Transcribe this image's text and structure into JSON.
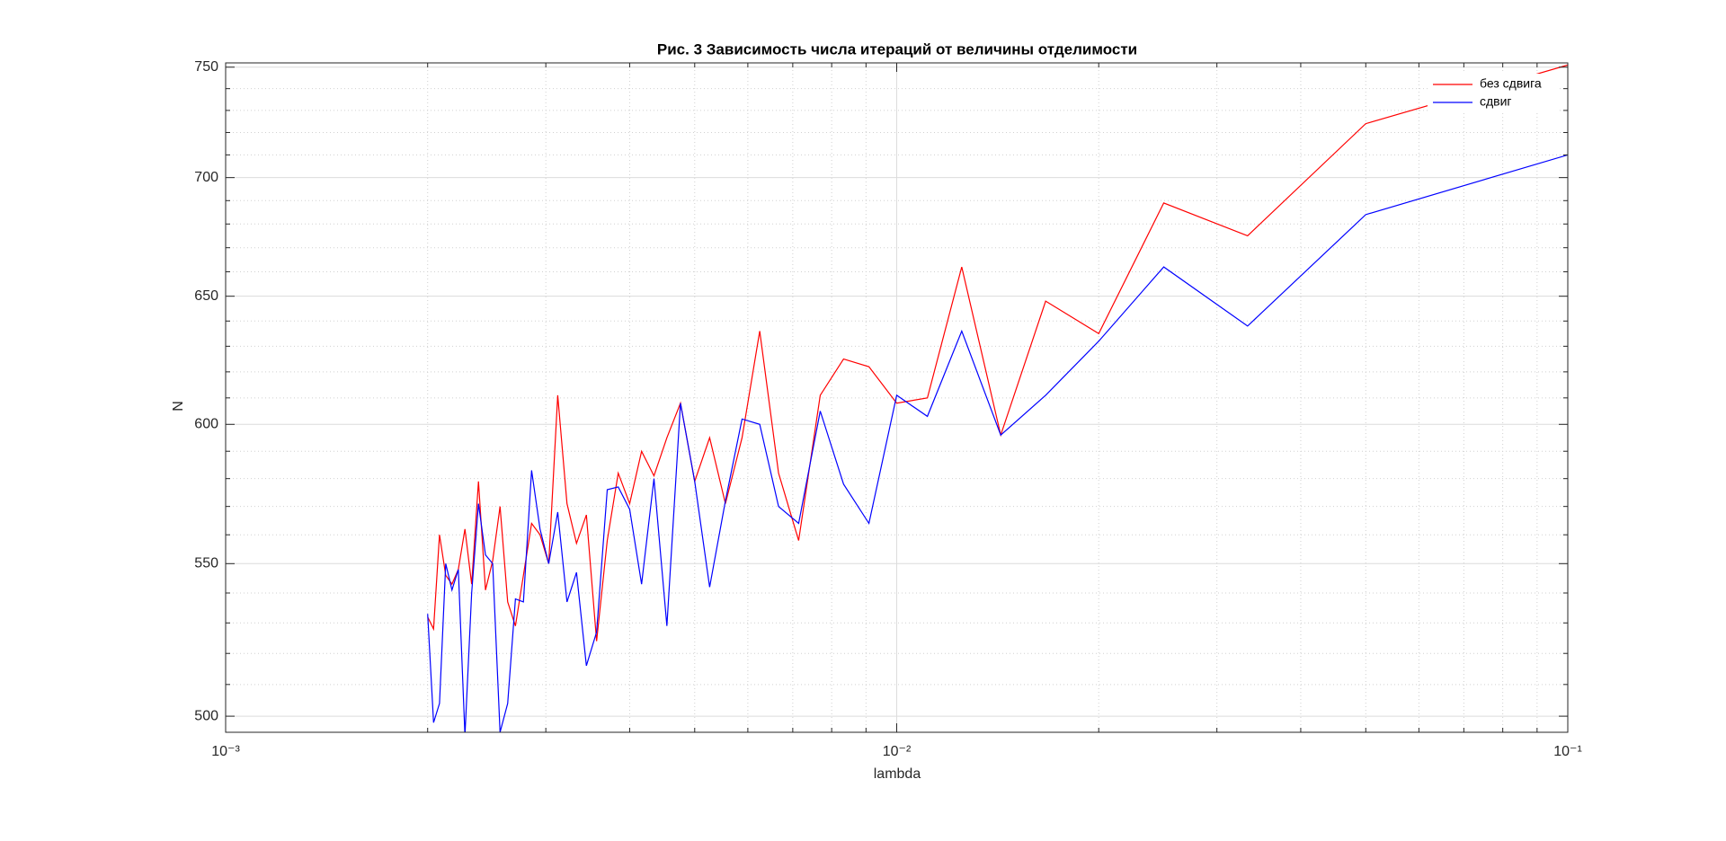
{
  "chart_data": {
    "type": "line",
    "title": "Рис. 3 Зависимость числа итераций от величины отделимости",
    "x_label": "lambda",
    "y_label": "N",
    "x_scale": "log",
    "y_scale": "log",
    "grid": true,
    "minor_grid": true,
    "legend": "northeast",
    "xlim": [
      0.001,
      0.1
    ],
    "ylim": [
      495,
      752
    ],
    "xticks": [
      {
        "value": 0.001,
        "label": "10⁻³"
      },
      {
        "value": 0.01,
        "label": "10⁻²"
      },
      {
        "value": 0.1,
        "label": "10⁻¹"
      }
    ],
    "xminorticks": [
      0.002,
      0.003,
      0.004,
      0.005,
      0.006,
      0.007,
      0.008,
      0.009,
      0.02,
      0.03,
      0.04,
      0.05,
      0.06,
      0.07,
      0.08,
      0.09
    ],
    "yticks": [
      500,
      550,
      600,
      650,
      700,
      750
    ],
    "yminorticks": [
      510,
      520,
      530,
      540,
      560,
      570,
      580,
      590,
      610,
      620,
      630,
      640,
      660,
      670,
      680,
      690,
      710,
      720,
      730,
      740
    ],
    "x": [
      0.002,
      0.002041,
      0.002083,
      0.002128,
      0.002174,
      0.002222,
      0.002273,
      0.002326,
      0.002381,
      0.002439,
      0.0025,
      0.002564,
      0.002632,
      0.002703,
      0.002778,
      0.002857,
      0.002941,
      0.00303,
      0.003125,
      0.003226,
      0.003333,
      0.003448,
      0.003571,
      0.003704,
      0.003846,
      0.004,
      0.004167,
      0.004348,
      0.004545,
      0.004762,
      0.005,
      0.005263,
      0.005556,
      0.005882,
      0.00625,
      0.006667,
      0.007143,
      0.007692,
      0.008333,
      0.009091,
      0.01,
      0.01111,
      0.0125,
      0.01429,
      0.01667,
      0.02,
      0.025,
      0.03333,
      0.05,
      0.1
    ],
    "series": [
      {
        "name": "без сдвига",
        "color": "#ff0000",
        "values": [
          532,
          528,
          560,
          546,
          543,
          548,
          562,
          543,
          579,
          541,
          551,
          570,
          537,
          529,
          546,
          564,
          560,
          550,
          611,
          571,
          557,
          567,
          524,
          558,
          582,
          571,
          590,
          581,
          595,
          608,
          579,
          595,
          571,
          595,
          636,
          582,
          558,
          611,
          625,
          622,
          608,
          610,
          662,
          596,
          648,
          635,
          689,
          675,
          724,
          751
        ]
      },
      {
        "name": "сдвиг",
        "color": "#0000ff",
        "values": [
          533,
          498,
          504,
          550,
          541,
          548,
          494,
          540,
          571,
          553,
          550,
          495,
          504,
          538,
          537,
          583,
          562,
          550,
          568,
          537,
          547,
          516,
          527,
          576,
          577,
          569,
          543,
          580,
          529,
          608,
          579,
          542,
          572,
          602,
          600,
          570,
          564,
          605,
          578,
          564,
          611,
          603,
          636,
          596,
          611,
          632,
          662,
          638,
          684,
          710
        ]
      }
    ]
  }
}
